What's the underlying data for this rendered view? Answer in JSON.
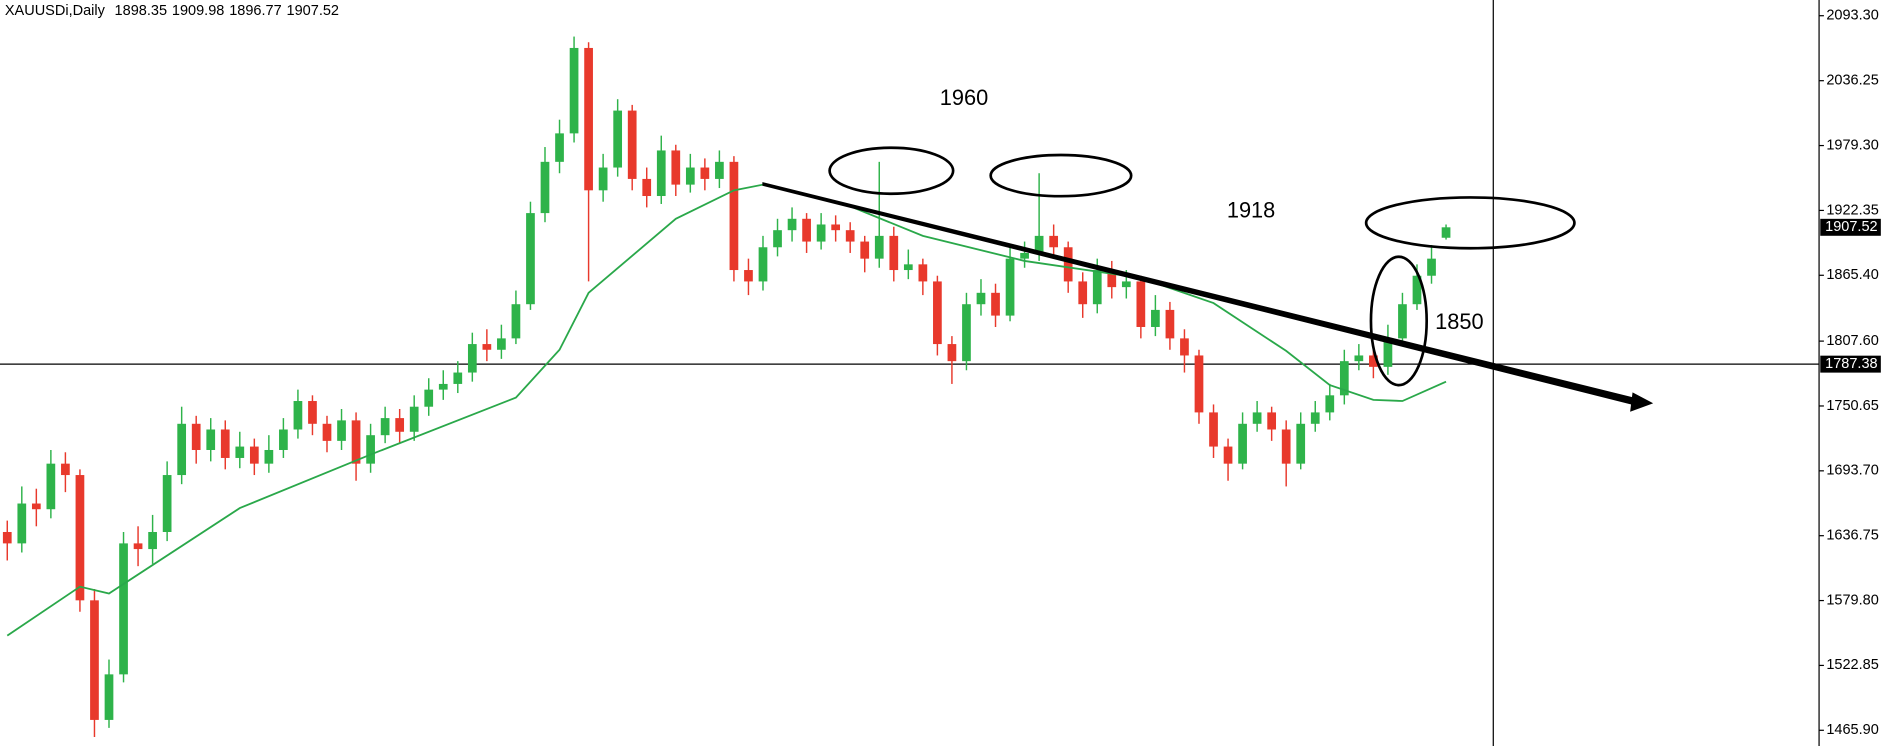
{
  "chart_data": {
    "type": "candlestick",
    "title": "XAUUSDi,Daily",
    "open": [
      1640,
      1630,
      1665,
      1660,
      1700,
      1690,
      1580,
      1475,
      1515,
      1630,
      1625,
      1640,
      1690,
      1735,
      1712,
      1730,
      1705,
      1715,
      1700,
      1712,
      1730,
      1755,
      1735,
      1720,
      1738,
      1700,
      1725,
      1740,
      1728,
      1750,
      1765,
      1770,
      1780,
      1805,
      1800,
      1810,
      1840,
      1920,
      1965,
      1990,
      2065,
      1940,
      1960,
      2010,
      1950,
      1935,
      1975,
      1945,
      1960,
      1950,
      1965,
      1870,
      1860,
      1890,
      1905,
      1915,
      1895,
      1910,
      1905,
      1895,
      1880,
      1900,
      1870,
      1875,
      1860,
      1805,
      1790,
      1840,
      1850,
      1830,
      1880,
      1885,
      1900,
      1890,
      1860,
      1840,
      1870,
      1855,
      1860,
      1820,
      1835,
      1810,
      1795,
      1745,
      1715,
      1700,
      1735,
      1745,
      1730,
      1700,
      1735,
      1745,
      1760,
      1790,
      1795,
      1785,
      1810,
      1840,
      1865,
      1898.35
    ],
    "high": [
      1650,
      1680,
      1678,
      1712,
      1710,
      1695,
      1590,
      1528,
      1640,
      1645,
      1655,
      1702,
      1750,
      1742,
      1740,
      1738,
      1728,
      1722,
      1725,
      1740,
      1765,
      1760,
      1742,
      1748,
      1745,
      1735,
      1750,
      1748,
      1760,
      1775,
      1782,
      1790,
      1815,
      1818,
      1822,
      1852,
      1930,
      1978,
      2002,
      2075,
      2070,
      1972,
      2020,
      2015,
      1960,
      1988,
      1980,
      1972,
      1968,
      1975,
      1970,
      1880,
      1900,
      1915,
      1925,
      1920,
      1920,
      1918,
      1912,
      1900,
      1965,
      1908,
      1888,
      1880,
      1865,
      1812,
      1850,
      1862,
      1858,
      1892,
      1895,
      1955,
      1910,
      1895,
      1868,
      1880,
      1878,
      1870,
      1865,
      1848,
      1842,
      1818,
      1800,
      1752,
      1722,
      1745,
      1755,
      1750,
      1738,
      1745,
      1755,
      1770,
      1800,
      1805,
      1800,
      1822,
      1850,
      1875,
      1892,
      1909.98
    ],
    "low": [
      1615,
      1622,
      1645,
      1652,
      1675,
      1570,
      1460,
      1468,
      1508,
      1610,
      1612,
      1632,
      1682,
      1700,
      1702,
      1695,
      1696,
      1690,
      1692,
      1705,
      1722,
      1725,
      1710,
      1712,
      1685,
      1692,
      1718,
      1718,
      1720,
      1742,
      1756,
      1762,
      1772,
      1790,
      1792,
      1805,
      1835,
      1912,
      1955,
      1982,
      1860,
      1930,
      1952,
      1940,
      1925,
      1928,
      1935,
      1938,
      1940,
      1942,
      1860,
      1848,
      1852,
      1882,
      1895,
      1885,
      1888,
      1895,
      1885,
      1868,
      1872,
      1860,
      1862,
      1848,
      1795,
      1770,
      1782,
      1830,
      1820,
      1825,
      1872,
      1878,
      1880,
      1850,
      1828,
      1832,
      1845,
      1845,
      1810,
      1812,
      1800,
      1780,
      1735,
      1705,
      1685,
      1695,
      1728,
      1720,
      1680,
      1695,
      1728,
      1738,
      1752,
      1782,
      1775,
      1778,
      1805,
      1835,
      1858,
      1896.77
    ],
    "close": [
      1630,
      1665,
      1660,
      1700,
      1690,
      1580,
      1475,
      1515,
      1630,
      1625,
      1640,
      1690,
      1735,
      1712,
      1730,
      1705,
      1715,
      1700,
      1712,
      1730,
      1755,
      1735,
      1720,
      1738,
      1700,
      1725,
      1740,
      1728,
      1750,
      1765,
      1770,
      1780,
      1805,
      1800,
      1810,
      1840,
      1920,
      1965,
      1990,
      2065,
      1940,
      1960,
      2010,
      1950,
      1935,
      1975,
      1945,
      1960,
      1950,
      1965,
      1870,
      1860,
      1890,
      1905,
      1915,
      1895,
      1910,
      1905,
      1895,
      1880,
      1900,
      1870,
      1875,
      1860,
      1805,
      1790,
      1840,
      1850,
      1830,
      1880,
      1885,
      1900,
      1890,
      1860,
      1840,
      1870,
      1855,
      1860,
      1820,
      1835,
      1810,
      1795,
      1745,
      1715,
      1700,
      1735,
      1745,
      1730,
      1700,
      1735,
      1745,
      1760,
      1790,
      1795,
      1785,
      1810,
      1840,
      1865,
      1880,
      1907.52
    ],
    "up_color": "#2eb34a",
    "down_color": "#e8392c",
    "xlim": [
      -0.5,
      124.5
    ],
    "ylim": [
      1452.1,
      2107.1
    ],
    "yticks": [
      {
        "value": 2093.3,
        "label": "2093.30"
      },
      2036.25,
      {
        "value": 1979.3,
        "label": "1979.30"
      },
      1922.35,
      {
        "value": 1865.4,
        "label": "1865.40"
      },
      {
        "value": 1807.6,
        "label": "1807.60"
      },
      1750.65,
      {
        "value": 1693.7,
        "label": "1693.70"
      },
      1636.75,
      {
        "value": 1579.8,
        "label": "1579.80"
      },
      1522.85,
      {
        "value": 1465.9,
        "label": "1465.90"
      }
    ],
    "ma": {
      "color": "#2aa84a",
      "x": [
        0,
        5,
        7,
        16,
        25,
        35,
        38,
        40,
        46,
        50,
        52,
        58,
        63,
        70,
        78,
        83,
        88,
        91,
        94,
        96,
        99
      ],
      "values": [
        1549,
        1592,
        1586,
        1661,
        1708,
        1758,
        1800,
        1850,
        1915,
        1940,
        1945,
        1926,
        1900,
        1878,
        1863,
        1841,
        1799,
        1769,
        1756,
        1755,
        1772
      ]
    },
    "hline": 1787.38,
    "annotations": [
      "1960",
      "1918",
      "1850"
    ]
  }
}
